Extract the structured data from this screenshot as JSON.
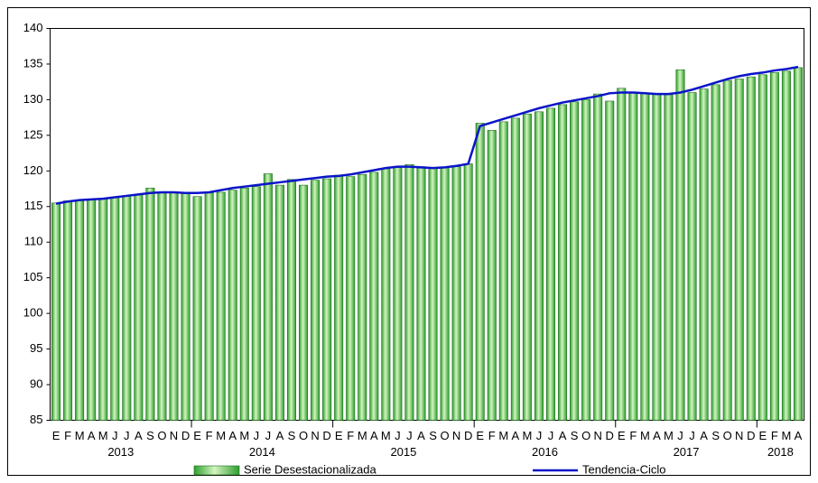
{
  "chart_data": {
    "type": "bar-line",
    "categories": [
      "E",
      "F",
      "M",
      "A",
      "M",
      "J",
      "J",
      "A",
      "S",
      "O",
      "N",
      "D",
      "E",
      "F",
      "M",
      "A",
      "M",
      "J",
      "J",
      "A",
      "S",
      "O",
      "N",
      "D",
      "E",
      "F",
      "M",
      "A",
      "M",
      "J",
      "J",
      "A",
      "S",
      "O",
      "N",
      "D",
      "E",
      "F",
      "M",
      "A",
      "M",
      "J",
      "J",
      "A",
      "S",
      "O",
      "N",
      "D",
      "E",
      "F",
      "M",
      "A",
      "M",
      "J",
      "J",
      "A",
      "S",
      "O",
      "N",
      "D",
      "E",
      "F",
      "M",
      "A"
    ],
    "years": [
      "2013",
      "2014",
      "2015",
      "2016",
      "2017",
      "2018"
    ],
    "ylim": [
      85,
      140
    ],
    "yticks": [
      85,
      90,
      95,
      100,
      105,
      110,
      115,
      120,
      125,
      130,
      135,
      140
    ],
    "series": [
      {
        "name": "Serie Desestacionalizada",
        "type": "bar",
        "color": "#2e9e2e",
        "values": [
          115.5,
          115.8,
          115.9,
          116.0,
          116.1,
          116.3,
          116.5,
          116.7,
          117.6,
          116.9,
          117.0,
          117.0,
          116.4,
          116.9,
          117.0,
          117.3,
          117.6,
          117.8,
          119.6,
          118.0,
          118.8,
          118.0,
          118.7,
          118.9,
          119.4,
          119.2,
          119.5,
          119.8,
          120.3,
          120.5,
          120.9,
          120.6,
          120.4,
          120.5,
          120.6,
          121.0,
          126.7,
          125.7,
          126.9,
          127.4,
          128.0,
          128.3,
          128.8,
          129.3,
          129.7,
          130.0,
          130.8,
          129.8,
          131.6,
          131.0,
          130.9,
          130.8,
          130.7,
          134.2,
          131.0,
          131.5,
          132.1,
          132.7,
          132.9,
          133.2,
          133.5,
          133.8,
          134.0,
          134.5
        ]
      },
      {
        "name": "Tendencia-Ciclo",
        "type": "line",
        "color": "#0a14c8",
        "values": [
          115.4,
          115.7,
          115.9,
          116.0,
          116.1,
          116.3,
          116.5,
          116.7,
          116.9,
          117.0,
          117.0,
          116.9,
          116.9,
          117.0,
          117.3,
          117.6,
          117.8,
          118.0,
          118.2,
          118.4,
          118.6,
          118.8,
          119.0,
          119.2,
          119.3,
          119.5,
          119.8,
          120.1,
          120.4,
          120.6,
          120.6,
          120.5,
          120.4,
          120.5,
          120.7,
          121.0,
          126.3,
          126.8,
          127.3,
          127.8,
          128.3,
          128.8,
          129.2,
          129.6,
          129.9,
          130.2,
          130.5,
          130.9,
          131.0,
          131.0,
          130.9,
          130.8,
          130.8,
          131.0,
          131.4,
          131.9,
          132.4,
          132.9,
          133.3,
          133.6,
          133.8,
          134.1,
          134.3,
          134.6
        ]
      }
    ]
  }
}
